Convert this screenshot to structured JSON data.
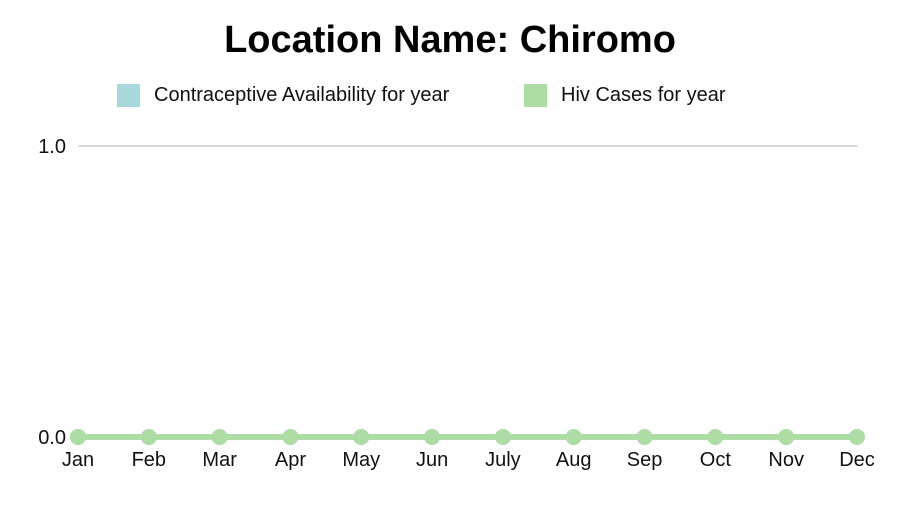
{
  "chart_data": {
    "type": "line",
    "title": "Location Name: Chiromo",
    "categories": [
      "Jan",
      "Feb",
      "Mar",
      "Apr",
      "May",
      "Jun",
      "July",
      "Aug",
      "Sep",
      "Oct",
      "Nov",
      "Dec"
    ],
    "series": [
      {
        "name": "Contraceptive Availability for year",
        "color": "#a9d8dc",
        "values": [
          0,
          0,
          0,
          0,
          0,
          0,
          0,
          0,
          0,
          0,
          0,
          0
        ]
      },
      {
        "name": "Hiv Cases for year",
        "color": "#addca5",
        "values": [
          0,
          0,
          0,
          0,
          0,
          0,
          0,
          0,
          0,
          0,
          0,
          0
        ]
      }
    ],
    "ylim": [
      0,
      1
    ],
    "yticks": [
      "0.0",
      "1.0"
    ],
    "xlabel": "",
    "ylabel": "",
    "legend_position": "top-center",
    "grid": true
  }
}
